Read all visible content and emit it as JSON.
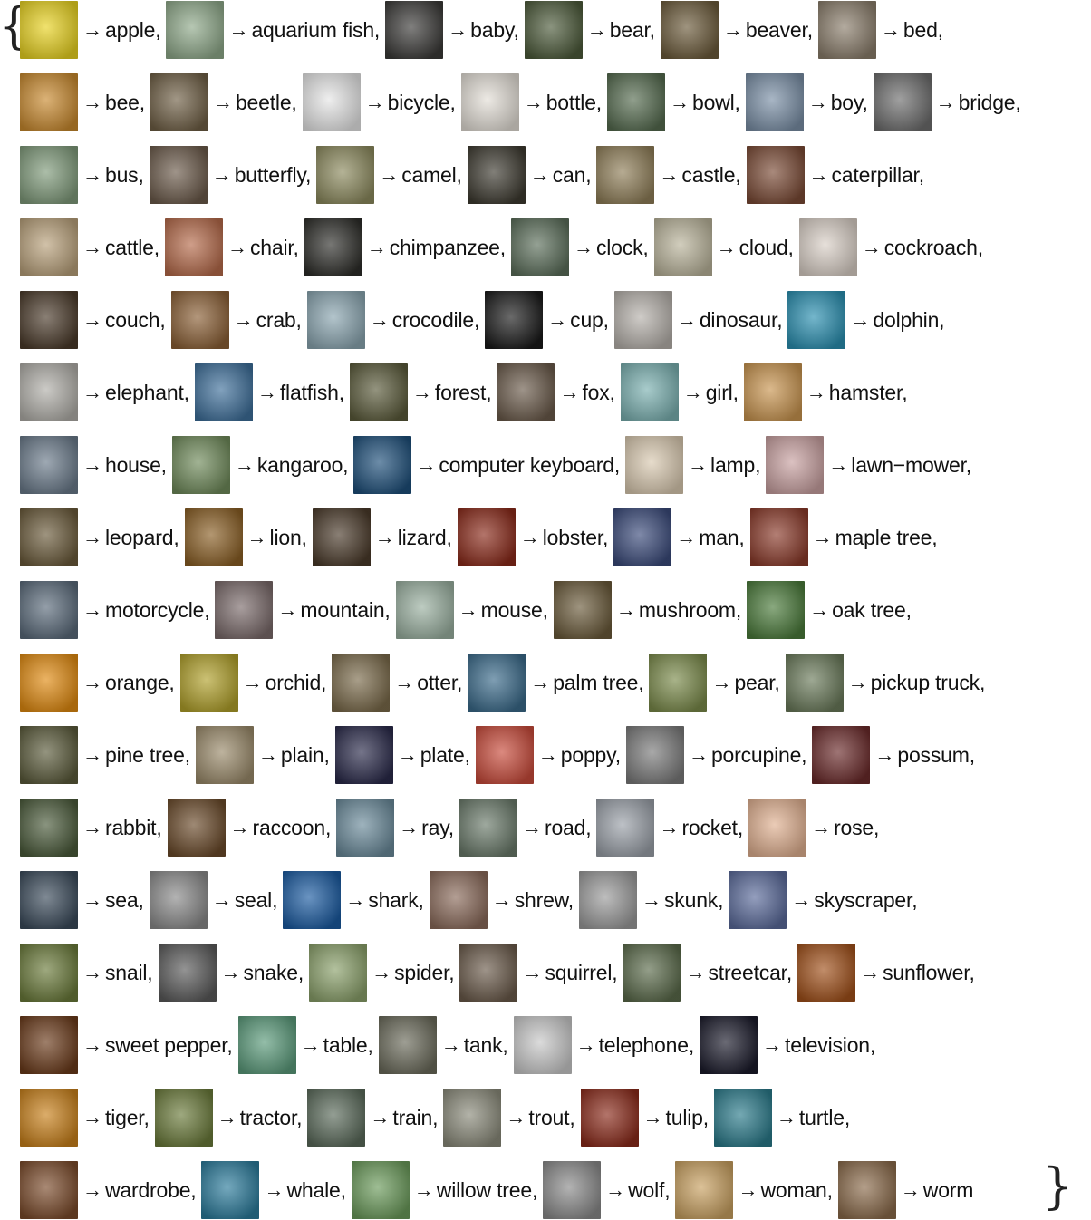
{
  "open_brace": "{",
  "close_brace": "}",
  "arrow": "→",
  "rows": [
    [
      [
        "apple",
        "#e8d220",
        ""
      ],
      [
        "aquarium fish",
        "#8fa98a",
        ""
      ],
      [
        "baby",
        "#3b3a38",
        ""
      ],
      [
        "bear",
        "#4c5a3a",
        ""
      ],
      [
        "beaver",
        "#6b5a3a",
        ""
      ],
      [
        "bed",
        "#8a7d6b",
        ""
      ]
    ],
    [
      [
        "bee",
        "#c8892e",
        ""
      ],
      [
        "beetle",
        "#6f5f45",
        ""
      ],
      [
        "bicycle",
        "#e6e6e6",
        ""
      ],
      [
        "bottle",
        "#e3ded6",
        ""
      ],
      [
        "bowl",
        "#556b4f",
        ""
      ],
      [
        "boy",
        "#7a8fa6",
        ""
      ],
      [
        "bridge",
        "#6d6d6d",
        ""
      ]
    ],
    [
      [
        "bus",
        "#7f9a7a",
        ""
      ],
      [
        "butterfly",
        "#6b5a4a",
        ""
      ],
      [
        "camel",
        "#8c8a5e",
        ""
      ],
      [
        "can",
        "#3d3a30",
        ""
      ],
      [
        "castle",
        "#8f7e58",
        ""
      ],
      [
        "caterpillar",
        "#7a4a35",
        ""
      ]
    ],
    [
      [
        "cattle",
        "#b8a07a",
        ""
      ],
      [
        "chair",
        "#b56a4a",
        ""
      ],
      [
        "chimpanzee",
        "#2e2e2a",
        ""
      ],
      [
        "clock",
        "#5b6e5a",
        ""
      ],
      [
        "cloud",
        "#b9b39a",
        ""
      ],
      [
        "cockroach",
        "#d9cfc6",
        ""
      ]
    ],
    [
      [
        "couch",
        "#4a3a2a",
        ""
      ],
      [
        "crab",
        "#8a5f35",
        ""
      ],
      [
        "crocodile",
        "#8aa5b0",
        ""
      ],
      [
        "cup",
        "#1a1a1a",
        ""
      ],
      [
        "dinosaur",
        "#b5b0aa",
        ""
      ],
      [
        "dolphin",
        "#2a8fb0",
        ""
      ]
    ],
    [
      [
        "elephant",
        "#b0aea8",
        ""
      ],
      [
        "flatfish",
        "#3e6f9a",
        ""
      ],
      [
        "forest",
        "#5a5a3a",
        ""
      ],
      [
        "fox",
        "#6a5a4a",
        ""
      ],
      [
        "girl",
        "#7ab0b0",
        ""
      ],
      [
        "hamster",
        "#c8944f",
        ""
      ]
    ],
    [
      [
        "house",
        "#6a7a8a",
        ""
      ],
      [
        "kangaroo",
        "#6f8a5a",
        ""
      ],
      [
        "computer keyboard",
        "#1e4f7a",
        ""
      ],
      [
        "lamp",
        "#d9c9b0",
        ""
      ],
      [
        "lawn−mower",
        "#c8a0a0",
        ""
      ]
    ],
    [
      [
        "leopard",
        "#6a5a3a",
        ""
      ],
      [
        "lion",
        "#8a5f25",
        ""
      ],
      [
        "lizard",
        "#4a3a2a",
        ""
      ],
      [
        "lobster",
        "#8a2a1a",
        ""
      ],
      [
        "man",
        "#3a4a7a",
        ""
      ],
      [
        "maple tree",
        "#8a3a2a",
        ""
      ]
    ],
    [
      [
        "motorcycle",
        "#5a6a7a",
        ""
      ],
      [
        "mountain",
        "#7a6a6a",
        ""
      ],
      [
        "mouse",
        "#9ab0a0",
        ""
      ],
      [
        "mushroom",
        "#6a5a3a",
        ""
      ],
      [
        "oak tree",
        "#4a7a3a",
        ""
      ]
    ],
    [
      [
        "orange",
        "#e08a10",
        ""
      ],
      [
        "orchid",
        "#b0a02a",
        ""
      ],
      [
        "otter",
        "#7a6a4a",
        ""
      ],
      [
        "palm tree",
        "#3a6a8a",
        ""
      ],
      [
        "pear",
        "#7a8a4a",
        ""
      ],
      [
        "pickup truck",
        "#6a7a5a",
        ""
      ]
    ],
    [
      [
        "pine tree",
        "#5a5a3a",
        ""
      ],
      [
        "plain",
        "#9a8a6a",
        ""
      ],
      [
        "plate",
        "#2a2a4a",
        ""
      ],
      [
        "poppy",
        "#c84a3a",
        ""
      ],
      [
        "porcupine",
        "#7a7a7a",
        ""
      ],
      [
        "possum",
        "#6a2a2a",
        ""
      ]
    ],
    [
      [
        "rabbit",
        "#4a5a3a",
        ""
      ],
      [
        "raccoon",
        "#6a4a2a",
        ""
      ],
      [
        "ray",
        "#6a8a9a",
        ""
      ],
      [
        "road",
        "#6a7a6a",
        ""
      ],
      [
        "rocket",
        "#9aa0a8",
        ""
      ],
      [
        "rose",
        "#e0b090",
        ""
      ]
    ],
    [
      [
        "sea",
        "#3a4a5a",
        ""
      ],
      [
        "seal",
        "#8a8a8a",
        ""
      ],
      [
        "shark",
        "#1a5aa0",
        ""
      ],
      [
        "shrew",
        "#8a6a5a",
        ""
      ],
      [
        "skunk",
        "#9a9a9a",
        ""
      ],
      [
        "skyscraper",
        "#5a6a9a",
        ""
      ]
    ],
    [
      [
        "snail",
        "#6a7a3a",
        ""
      ],
      [
        "snake",
        "#5a5a5a",
        ""
      ],
      [
        "spider",
        "#8aa06a",
        ""
      ],
      [
        "squirrel",
        "#6a5a4a",
        ""
      ],
      [
        "streetcar",
        "#5a6a4a",
        ""
      ],
      [
        "sunflower",
        "#a0501a",
        ""
      ]
    ],
    [
      [
        "sweet pepper",
        "#6a3a1a",
        ""
      ],
      [
        "table",
        "#5a9a7a",
        ""
      ],
      [
        "tank",
        "#6a6a5a",
        ""
      ],
      [
        "telephone",
        "#c8c8c8",
        ""
      ],
      [
        "television",
        "#1a1a2a",
        ""
      ]
    ],
    [
      [
        "tiger",
        "#c8801a",
        ""
      ],
      [
        "tractor",
        "#6a7a3a",
        ""
      ],
      [
        "train",
        "#5a6a5a",
        ""
      ],
      [
        "trout",
        "#8a8a7a",
        ""
      ],
      [
        "tulip",
        "#8a2a1a",
        ""
      ],
      [
        "turtle",
        "#2a7a8a",
        ""
      ]
    ],
    [
      [
        "wardrobe",
        "#7a4a2a",
        ""
      ],
      [
        "whale",
        "#2a7a9a",
        ""
      ],
      [
        "willow tree",
        "#6a9a5a",
        ""
      ],
      [
        "wolf",
        "#8a8a8a",
        ""
      ],
      [
        "woman",
        "#c8a060",
        ""
      ],
      [
        "worm",
        "#8a6a4a",
        ""
      ]
    ]
  ]
}
